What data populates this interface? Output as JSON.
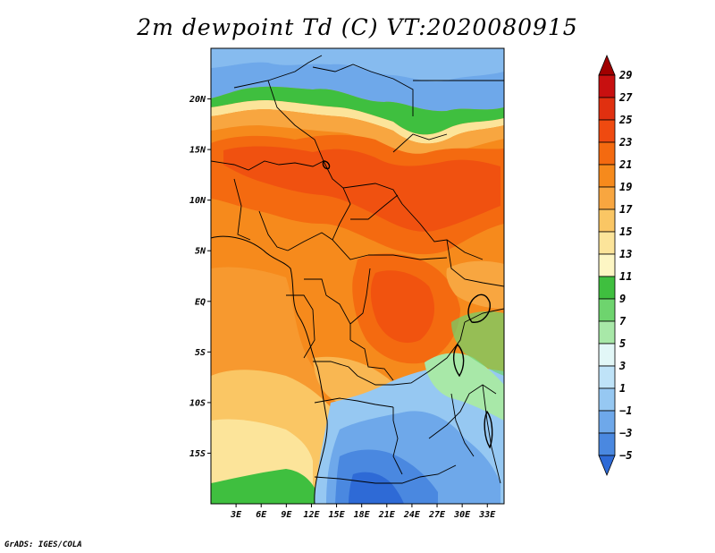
{
  "title": "2m dewpoint Td (C) VT:2020080915",
  "credit": "GrADS: IGES/COLA",
  "map": {
    "lat_range": [
      -20,
      25
    ],
    "lon_range": [
      0,
      35
    ],
    "lat_ticks": [
      {
        "value": 20,
        "label": "20N"
      },
      {
        "value": 15,
        "label": "15N"
      },
      {
        "value": 10,
        "label": "10N"
      },
      {
        "value": 5,
        "label": "5N"
      },
      {
        "value": 0,
        "label": "EQ"
      },
      {
        "value": -5,
        "label": "5S"
      },
      {
        "value": -10,
        "label": "10S"
      },
      {
        "value": -15,
        "label": "15S"
      }
    ],
    "lon_ticks": [
      {
        "value": 3,
        "label": "3E"
      },
      {
        "value": 6,
        "label": "6E"
      },
      {
        "value": 9,
        "label": "9E"
      },
      {
        "value": 12,
        "label": "12E"
      },
      {
        "value": 15,
        "label": "15E"
      },
      {
        "value": 18,
        "label": "18E"
      },
      {
        "value": 21,
        "label": "21E"
      },
      {
        "value": 24,
        "label": "24E"
      },
      {
        "value": 27,
        "label": "27E"
      },
      {
        "value": 30,
        "label": "30E"
      },
      {
        "value": 33,
        "label": "33E"
      }
    ]
  },
  "colorbar": {
    "labels": [
      "29",
      "27",
      "25",
      "23",
      "21",
      "19",
      "17",
      "15",
      "13",
      "11",
      "9",
      "7",
      "5",
      "3",
      "1",
      "−1",
      "−3",
      "−5"
    ],
    "colors": [
      "#a00000",
      "#c81010",
      "#e03010",
      "#ef4a10",
      "#f46a10",
      "#f68a1c",
      "#f8a640",
      "#fac664",
      "#fce49a",
      "#fdf6c4",
      "#3fbf3f",
      "#6ed46e",
      "#a8e8a8",
      "#e2f7f7",
      "#bfe3f8",
      "#96c8f2",
      "#6ea8ea",
      "#4a88e0",
      "#2e6ad6"
    ]
  },
  "colors": {
    "background": "#ffffff",
    "boundary": "#000000"
  }
}
